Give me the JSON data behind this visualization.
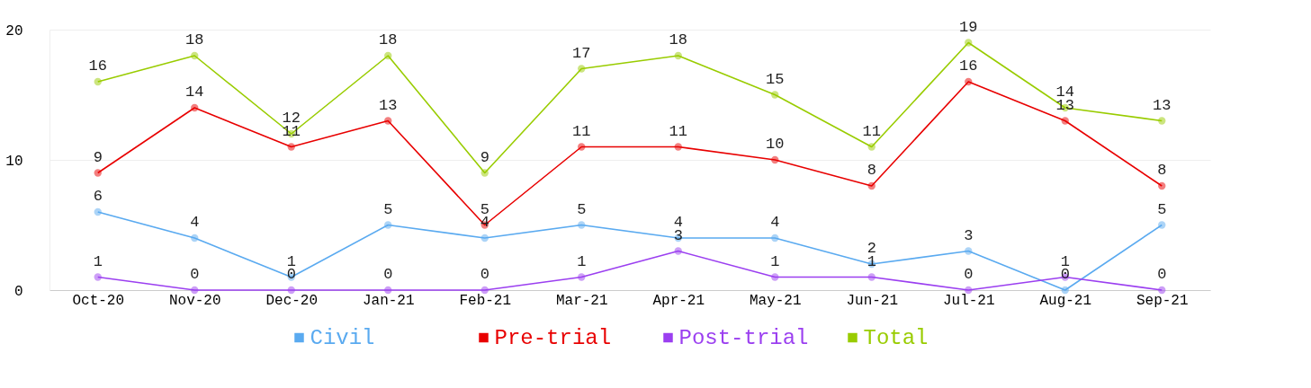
{
  "chart_data": {
    "type": "line",
    "categories": [
      "Oct-20",
      "Nov-20",
      "Dec-20",
      "Jan-21",
      "Feb-21",
      "Mar-21",
      "Apr-21",
      "May-21",
      "Jun-21",
      "Jul-21",
      "Aug-21",
      "Sep-21"
    ],
    "series": [
      {
        "name": "Civil",
        "color": "#5aaaf0",
        "values": [
          6,
          4,
          1,
          5,
          4,
          5,
          4,
          4,
          2,
          3,
          0,
          5
        ]
      },
      {
        "name": "Pre-trial",
        "color": "#e80000",
        "values": [
          9,
          14,
          11,
          13,
          5,
          11,
          11,
          10,
          8,
          16,
          13,
          8
        ]
      },
      {
        "name": "Post-trial",
        "color": "#9b3ff0",
        "values": [
          1,
          0,
          0,
          0,
          0,
          1,
          3,
          1,
          1,
          0,
          1,
          0
        ]
      },
      {
        "name": "Total",
        "color": "#99cc00",
        "values": [
          16,
          18,
          12,
          18,
          9,
          17,
          18,
          15,
          11,
          19,
          14,
          13
        ]
      }
    ],
    "ylim": [
      0,
      20
    ],
    "yticks": [
      0,
      10,
      20
    ],
    "grid": "y",
    "legend": "bottom",
    "marker": "circle",
    "data_labels": true,
    "line_style": "solid"
  }
}
